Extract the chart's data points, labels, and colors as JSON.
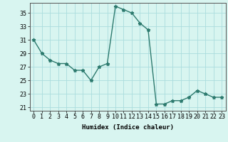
{
  "x": [
    0,
    1,
    2,
    3,
    4,
    5,
    6,
    7,
    8,
    9,
    10,
    11,
    12,
    13,
    14,
    15,
    16,
    17,
    18,
    19,
    20,
    21,
    22,
    23
  ],
  "y": [
    31,
    29,
    28,
    27.5,
    27.5,
    26.5,
    26.5,
    25,
    27,
    27.5,
    36,
    35.5,
    35,
    33.5,
    32.5,
    21.5,
    21.5,
    22,
    22,
    22.5,
    23.5,
    23,
    22.5,
    22.5
  ],
  "line_color": "#2d7a6e",
  "marker": "*",
  "marker_size": 3.5,
  "bg_color": "#d8f5f0",
  "grid_color": "#aadddd",
  "xlabel": "Humidex (Indice chaleur)",
  "xlim": [
    -0.5,
    23.5
  ],
  "ylim": [
    20.5,
    36.5
  ],
  "yticks": [
    21,
    23,
    25,
    27,
    29,
    31,
    33,
    35
  ],
  "xticks": [
    0,
    1,
    2,
    3,
    4,
    5,
    6,
    7,
    8,
    9,
    10,
    11,
    12,
    13,
    14,
    15,
    16,
    17,
    18,
    19,
    20,
    21,
    22,
    23
  ],
  "xlabel_fontsize": 6.5,
  "tick_fontsize": 6,
  "line_width": 1.0
}
